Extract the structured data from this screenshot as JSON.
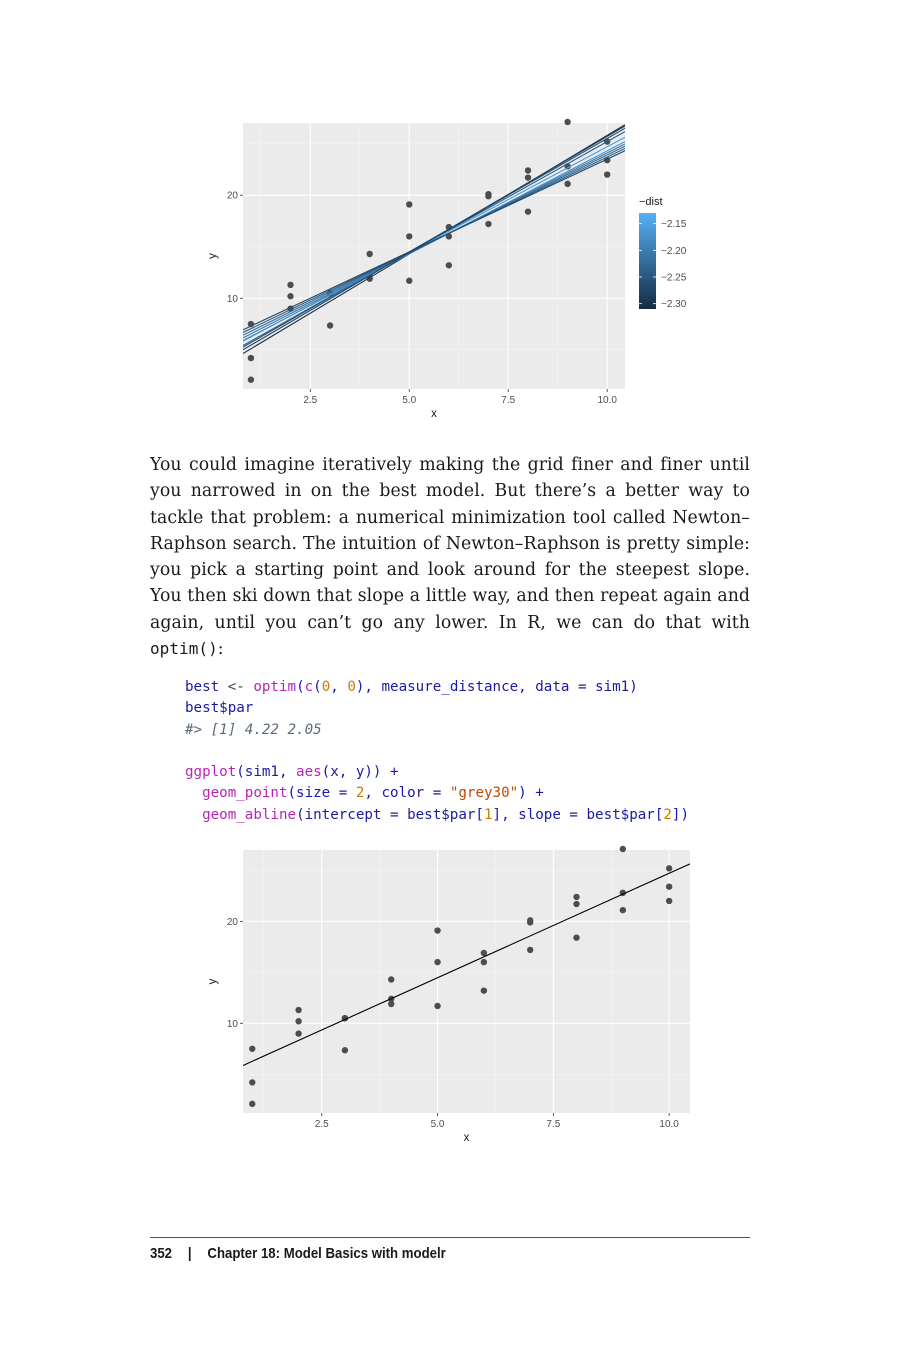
{
  "chart_data": [
    {
      "type": "scatter",
      "xlabel": "x",
      "ylabel": "y",
      "xlim": [
        0.8,
        10.45
      ],
      "ylim": [
        1.2,
        27.0
      ],
      "xticks": [
        2.5,
        5.0,
        7.5,
        10.0
      ],
      "xtick_labels": [
        "2.5",
        "5.0",
        "7.5",
        "10.0"
      ],
      "yticks": [
        10,
        20
      ],
      "ytick_labels": [
        "10",
        "20"
      ],
      "grid": true,
      "background": "#ebebeb",
      "point_color": "#4d4d4d",
      "points": {
        "x": [
          1,
          1,
          1,
          2,
          2,
          2,
          3,
          3,
          3,
          4,
          4,
          4,
          5,
          5,
          5,
          6,
          6,
          6,
          7,
          7,
          7,
          8,
          8,
          8,
          9,
          9,
          9,
          10,
          10,
          10
        ],
        "y": [
          4.2,
          7.5,
          2.1,
          8.99,
          10.2,
          11.3,
          7.36,
          10.5,
          10.5,
          12.4,
          11.9,
          14.3,
          19.1,
          11.7,
          16.0,
          16.9,
          13.2,
          16.0,
          20.1,
          17.2,
          19.9,
          18.4,
          22.4,
          21.7,
          21.1,
          22.8,
          27.1,
          23.4,
          22.0,
          25.2
        ]
      },
      "lines": [
        {
          "intercept": 2.8,
          "slope": 2.3,
          "dist": -2.3
        },
        {
          "intercept": 3.5,
          "slope": 2.2,
          "dist": -2.26
        },
        {
          "intercept": 3.7,
          "slope": 2.15,
          "dist": -2.24
        },
        {
          "intercept": 4.2,
          "slope": 2.05,
          "dist": -2.16
        },
        {
          "intercept": 4.3,
          "slope": 2.0,
          "dist": -2.18
        },
        {
          "intercept": 4.6,
          "slope": 1.95,
          "dist": -2.2
        },
        {
          "intercept": 4.9,
          "slope": 1.9,
          "dist": -2.22
        },
        {
          "intercept": 5.2,
          "slope": 1.85,
          "dist": -2.25
        },
        {
          "intercept": 5.5,
          "slope": 1.8,
          "dist": -2.27
        },
        {
          "intercept": 3.2,
          "slope": 2.25,
          "dist": -2.28
        }
      ],
      "legend": {
        "title": "−dist",
        "placement": "right",
        "labels": [
          "−2.15",
          "−2.20",
          "−2.25",
          "−2.30"
        ],
        "values": [
          -2.15,
          -2.2,
          -2.25,
          -2.3
        ],
        "range": [
          -2.31,
          -2.13
        ],
        "color_low": "#132b43",
        "color_high": "#56b1f7"
      }
    },
    {
      "type": "scatter",
      "xlabel": "x",
      "ylabel": "y",
      "xlim": [
        0.8,
        10.45
      ],
      "ylim": [
        1.2,
        27.0
      ],
      "xticks": [
        2.5,
        5.0,
        7.5,
        10.0
      ],
      "xtick_labels": [
        "2.5",
        "5.0",
        "7.5",
        "10.0"
      ],
      "yticks": [
        10,
        20
      ],
      "ytick_labels": [
        "10",
        "20"
      ],
      "grid": true,
      "background": "#ebebeb",
      "point_color": "#4d4d4d",
      "points": {
        "x": [
          1,
          1,
          1,
          2,
          2,
          2,
          3,
          3,
          3,
          4,
          4,
          4,
          5,
          5,
          5,
          6,
          6,
          6,
          7,
          7,
          7,
          8,
          8,
          8,
          9,
          9,
          9,
          10,
          10,
          10
        ],
        "y": [
          4.2,
          7.5,
          2.1,
          8.99,
          10.2,
          11.3,
          7.36,
          10.5,
          10.5,
          12.4,
          11.9,
          14.3,
          19.1,
          11.7,
          16.0,
          16.9,
          13.2,
          16.0,
          20.1,
          17.2,
          19.9,
          18.4,
          22.4,
          21.7,
          21.1,
          22.8,
          27.1,
          23.4,
          22.0,
          25.2
        ]
      },
      "lines": [
        {
          "intercept": 4.22,
          "slope": 2.05,
          "color": "#000000"
        }
      ]
    }
  ],
  "prose": {
    "text": "You could imagine iteratively making the grid finer and finer until you narrowed in on the best model. But there’s a better way to tackle that problem: a numerical minimization tool called Newton–Raphson search. The intuition of Newton–Raphson is pretty simple: you pick a starting point and look around for the steepest slope. You then ski down that slope a little way, and then repeat again and again, until you can’t go any lower. In R, we can do that with ",
    "code": "optim()",
    "tail": ":"
  },
  "code": {
    "l1_var": "best",
    "l1_assign": " <- ",
    "l1_fn1": "optim",
    "l1_p1": "(",
    "l1_fn2": "c",
    "l1_p2": "(",
    "l1_n1": "0",
    "l1_p3": ", ",
    "l1_n2": "0",
    "l1_p4": "), measure_distance, data = sim1)",
    "l2": "best$par",
    "l3": "#> [1] 4.22 2.05",
    "l5_fn": "ggplot",
    "l5_a": "(sim1, ",
    "l5_fn2": "aes",
    "l5_b": "(x, y)) +",
    "l6_indent": "  ",
    "l6_fn": "geom_point",
    "l6_a": "(size = ",
    "l6_n": "2",
    "l6_b": ", color = ",
    "l6_s": "\"grey30\"",
    "l6_c": ") +",
    "l7_indent": "  ",
    "l7_fn": "geom_abline",
    "l7_a": "(intercept = best$par[",
    "l7_n1": "1",
    "l7_b": "], slope = best$par[",
    "l7_n2": "2",
    "l7_c": "])"
  },
  "footer": {
    "page_number": "352",
    "separator": "|",
    "chapter": "Chapter 18: Model Basics with modelr"
  }
}
